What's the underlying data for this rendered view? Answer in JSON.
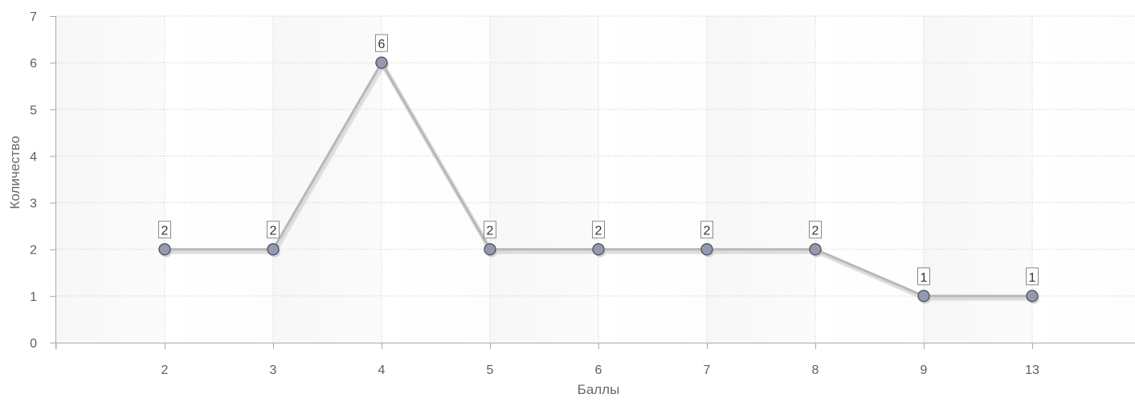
{
  "chart_data": {
    "type": "line",
    "title": "",
    "xlabel": "Баллы",
    "ylabel": "Количество",
    "categories": [
      "2",
      "3",
      "4",
      "5",
      "6",
      "7",
      "8",
      "9",
      "13"
    ],
    "series": [
      {
        "values": [
          2,
          2,
          6,
          2,
          2,
          2,
          2,
          1,
          1
        ]
      }
    ],
    "ylim": [
      0,
      7
    ],
    "yticks": [
      0,
      1,
      2,
      3,
      4,
      5,
      6,
      7
    ],
    "grid": true,
    "legend": "none",
    "colors": {
      "line": "#b8b8b8",
      "marker_fill": "#9499ad",
      "marker_stroke": "#4d4f60",
      "band_odd": "#f7f7f7",
      "band_even": "#ffffff",
      "grid": "#c8c8c8",
      "axis": "#aaaaaa"
    }
  }
}
